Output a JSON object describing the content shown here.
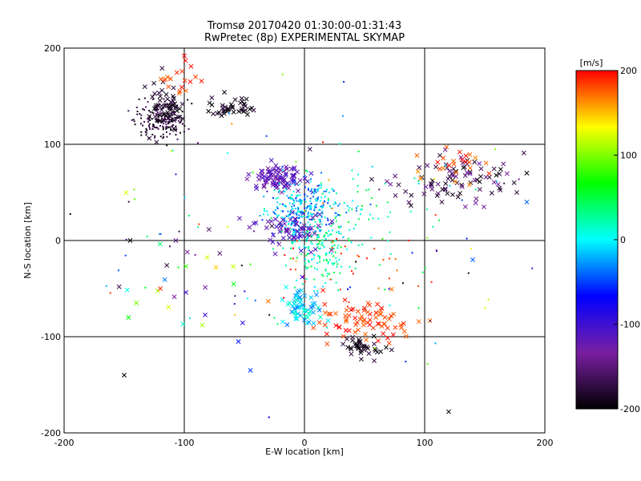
{
  "chart_data": {
    "type": "scatter",
    "title": "Tromsø 20170420 01:30:00-01:31:43",
    "subtitle": "RwPretec (8p) EXPERIMENTAL SKYMAP",
    "xlabel": "E-W location [km]",
    "ylabel": "N-S location [km]",
    "xlim": [
      -200,
      200
    ],
    "ylim": [
      -200,
      200
    ],
    "xticks": [
      -200,
      -100,
      0,
      100,
      200
    ],
    "yticks": [
      -200,
      -100,
      0,
      100,
      200
    ],
    "grid_lines_x": [
      -100,
      0,
      100
    ],
    "grid_lines_y": [
      -100,
      0,
      100
    ],
    "grid": true,
    "marker_styles": [
      "dot",
      "x"
    ],
    "colorbar": {
      "label": "[m/s]",
      "range": [
        -200,
        200
      ],
      "ticks": [
        200,
        100,
        0,
        -100,
        -200
      ],
      "colormap": [
        "#000000",
        "#7a1fa2",
        "#0000ff",
        "#00ffff",
        "#00ff00",
        "#ffff00",
        "#ff0000"
      ]
    },
    "clusters": [
      {
        "cx": -120,
        "cy": 125,
        "sx": 10,
        "sy": 10,
        "n": 180,
        "vmin": -200,
        "vmax": -150,
        "marker": "dot"
      },
      {
        "cx": -115,
        "cy": 140,
        "sx": 8,
        "sy": 12,
        "n": 60,
        "vmin": -200,
        "vmax": -170,
        "marker": "x"
      },
      {
        "cx": -60,
        "cy": 138,
        "sx": 10,
        "sy": 5,
        "n": 40,
        "vmin": -200,
        "vmax": -170,
        "marker": "x"
      },
      {
        "cx": -105,
        "cy": 165,
        "sx": 10,
        "sy": 8,
        "n": 18,
        "vmin": 170,
        "vmax": 200,
        "marker": "x"
      },
      {
        "cx": -20,
        "cy": 65,
        "sx": 12,
        "sy": 6,
        "n": 90,
        "vmin": -140,
        "vmax": -100,
        "marker": "x"
      },
      {
        "cx": 0,
        "cy": 30,
        "sx": 15,
        "sy": 15,
        "n": 300,
        "vmin": -60,
        "vmax": 20,
        "marker": "dot"
      },
      {
        "cx": 15,
        "cy": -10,
        "sx": 15,
        "sy": 18,
        "n": 160,
        "vmin": -10,
        "vmax": 60,
        "marker": "dot"
      },
      {
        "cx": -10,
        "cy": 10,
        "sx": 15,
        "sy": 10,
        "n": 60,
        "vmin": -140,
        "vmax": -100,
        "marker": "x"
      },
      {
        "cx": 0,
        "cy": -70,
        "sx": 8,
        "sy": 10,
        "n": 60,
        "vmin": -40,
        "vmax": 20,
        "marker": "x"
      },
      {
        "cx": 50,
        "cy": -85,
        "sx": 18,
        "sy": 10,
        "n": 80,
        "vmin": 170,
        "vmax": 200,
        "marker": "x"
      },
      {
        "cx": 48,
        "cy": -110,
        "sx": 8,
        "sy": 5,
        "n": 40,
        "vmin": -200,
        "vmax": -170,
        "marker": "x"
      },
      {
        "cx": 130,
        "cy": 65,
        "sx": 30,
        "sy": 12,
        "n": 90,
        "vmin": -200,
        "vmax": -120,
        "marker": "x"
      },
      {
        "cx": 120,
        "cy": 80,
        "sx": 20,
        "sy": 8,
        "n": 25,
        "vmin": 160,
        "vmax": 200,
        "marker": "x"
      },
      {
        "cx": 50,
        "cy": 40,
        "sx": 30,
        "sy": 20,
        "n": 60,
        "vmin": -20,
        "vmax": 60,
        "marker": "dot"
      },
      {
        "cx": 40,
        "cy": -20,
        "sx": 30,
        "sy": 20,
        "n": 30,
        "vmin": 170,
        "vmax": 200,
        "marker": "dot"
      },
      {
        "cx": -90,
        "cy": -40,
        "sx": 45,
        "sy": 30,
        "n": 30,
        "vmin": -200,
        "vmax": 200,
        "marker": "x"
      },
      {
        "cx": 0,
        "cy": 0,
        "sx": 90,
        "sy": 70,
        "n": 110,
        "vmin": -200,
        "vmax": 200,
        "marker": "dot"
      }
    ],
    "isolated_points": [
      {
        "x": -150,
        "y": -140,
        "v": -200,
        "marker": "x"
      },
      {
        "x": 120,
        "y": -178,
        "v": -200,
        "marker": "x"
      },
      {
        "x": -145,
        "y": 0,
        "v": -200,
        "marker": "x"
      },
      {
        "x": -100,
        "y": 192,
        "v": 200,
        "marker": "x"
      },
      {
        "x": 185,
        "y": 70,
        "v": -200,
        "marker": "x"
      },
      {
        "x": 185,
        "y": 40,
        "v": -40,
        "marker": "x"
      },
      {
        "x": -55,
        "y": -105,
        "v": -60,
        "marker": "x"
      },
      {
        "x": -45,
        "y": -135,
        "v": -50,
        "marker": "x"
      },
      {
        "x": -85,
        "y": -88,
        "v": 110,
        "marker": "x"
      },
      {
        "x": -120,
        "y": -50,
        "v": 190,
        "marker": "x"
      },
      {
        "x": 140,
        "y": -20,
        "v": -40,
        "marker": "x"
      }
    ]
  }
}
